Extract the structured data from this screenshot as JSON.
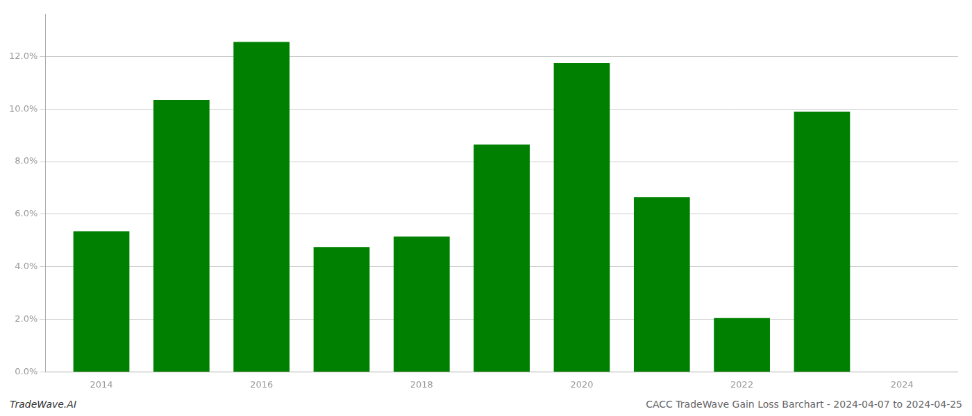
{
  "chart_data": {
    "type": "bar",
    "x": [
      2014,
      2015,
      2016,
      2017,
      2018,
      2019,
      2020,
      2021,
      2022,
      2023
    ],
    "values": [
      0.0535,
      0.1035,
      0.1255,
      0.0475,
      0.0515,
      0.0865,
      0.1175,
      0.0665,
      0.0205,
      0.099
    ],
    "color": "#008000",
    "xlim": [
      2013.3,
      2024.7
    ],
    "xticks": [
      2014,
      2016,
      2018,
      2020,
      2022,
      2024
    ],
    "ylim": [
      0.0,
      0.136
    ],
    "yticks": [
      {
        "value": 0.0,
        "label": "0.0%"
      },
      {
        "value": 0.02,
        "label": "2.0%"
      },
      {
        "value": 0.04,
        "label": "4.0%"
      },
      {
        "value": 0.06,
        "label": "6.0%"
      },
      {
        "value": 0.08,
        "label": "8.0%"
      },
      {
        "value": 0.1,
        "label": "10.0%"
      },
      {
        "value": 0.12,
        "label": "12.0%"
      }
    ],
    "grid": true,
    "annotations": [
      "TradeWave.AI",
      "CACC TradeWave Gain Loss Barchart - 2024-04-07 to 2024-04-25"
    ]
  }
}
